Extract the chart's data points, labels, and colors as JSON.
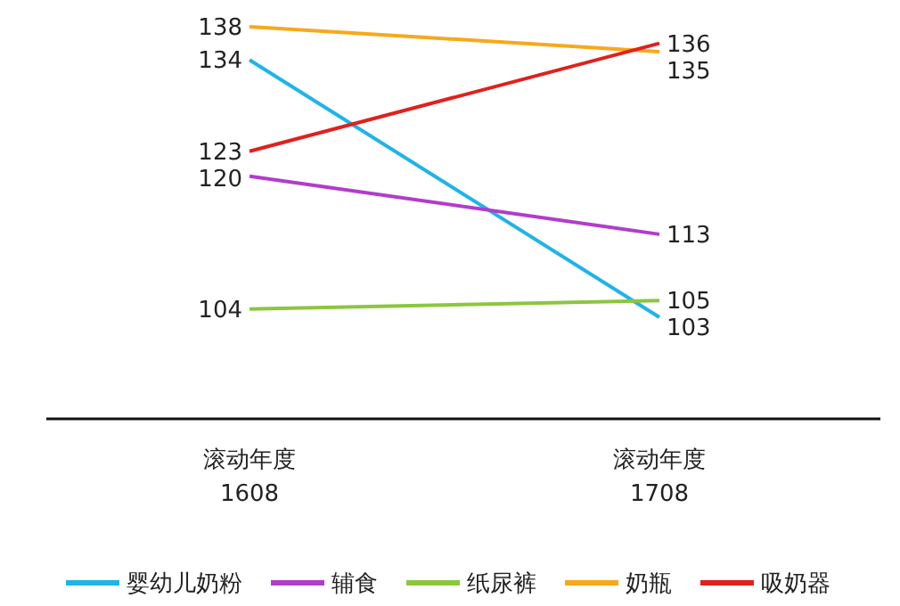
{
  "chart_data": {
    "type": "line",
    "categories": [
      "滚动年度\n1608",
      "滚动年度\n1708"
    ],
    "series": [
      {
        "name": "婴幼儿奶粉",
        "color": "#1fb4e8",
        "values": [
          134,
          103
        ]
      },
      {
        "name": "辅食",
        "color": "#b23ccc",
        "values": [
          120,
          113
        ]
      },
      {
        "name": "纸尿裤",
        "color": "#8cc63f",
        "values": [
          104,
          105
        ]
      },
      {
        "name": "奶瓶",
        "color": "#f7a81b",
        "values": [
          138,
          135
        ]
      },
      {
        "name": "吸奶器",
        "color": "#e0211d",
        "values": [
          123,
          136
        ]
      }
    ],
    "data_labels": true,
    "legend": "bottom",
    "marker": "none",
    "line_style": "solid"
  }
}
